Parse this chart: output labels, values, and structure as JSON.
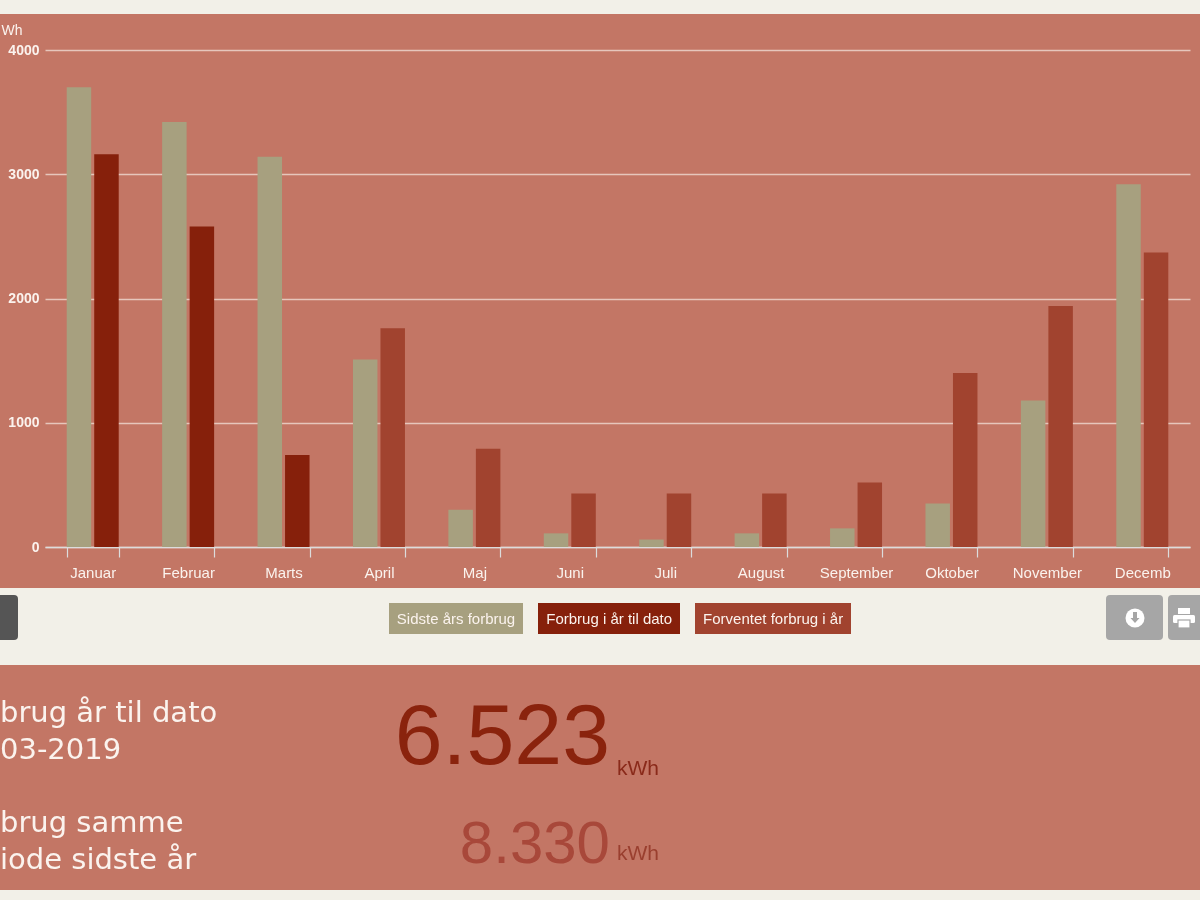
{
  "chart_data": [
    {
      "type": "bar",
      "ylabel": "Wh",
      "categories": [
        "Januar",
        "Februar",
        "Marts",
        "April",
        "Maj",
        "Juni",
        "Juli",
        "August",
        "September",
        "Oktober",
        "November",
        "Decemb"
      ],
      "series": [
        {
          "name": "Sidste års forbrug",
          "color": "#a7a07f",
          "values": [
            3700,
            3420,
            3140,
            1510,
            300,
            110,
            60,
            110,
            150,
            350,
            1180,
            2920
          ]
        },
        {
          "name": "Forbrug i år til dato",
          "color": "#86200b",
          "values": [
            3160,
            2580,
            740,
            null,
            null,
            null,
            null,
            null,
            null,
            null,
            null,
            null
          ]
        },
        {
          "name": "Forventet forbrug i år",
          "color": "#a1432f",
          "values": [
            null,
            null,
            null,
            1760,
            790,
            430,
            430,
            430,
            520,
            1400,
            1940,
            2370
          ]
        }
      ],
      "ylim": [
        0,
        4000
      ],
      "yticks": [
        0,
        1000,
        2000,
        3000,
        4000
      ],
      "grid": "y",
      "legend": "bottom"
    },
    {
      "type": "other",
      "annotations": [
        "brug år til dato",
        "03-2019",
        "6.523",
        "kWh",
        "brug samme",
        "iode sidste år",
        "8.330",
        "kWh"
      ]
    }
  ]
}
